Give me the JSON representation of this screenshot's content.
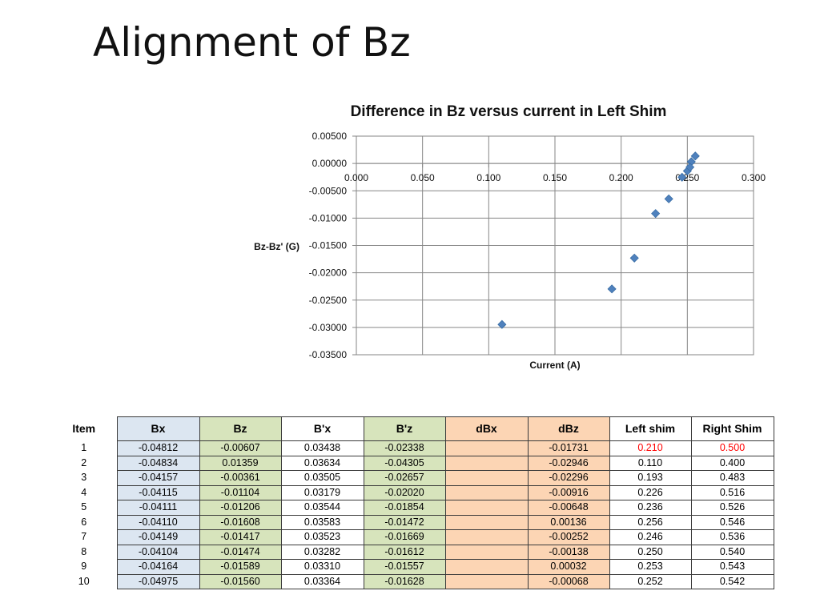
{
  "slide": {
    "title": "Alignment of Bz"
  },
  "chart_data": {
    "type": "scatter",
    "title": "Difference in Bz versus current in Left Shim",
    "xlabel": "Current (A)",
    "ylabel": "Bz-Bz' (G)",
    "xlim": [
      0.0,
      0.3
    ],
    "ylim": [
      -0.035,
      0.005
    ],
    "x_ticks": [
      0.0,
      0.05,
      0.1,
      0.15,
      0.2,
      0.25,
      0.3
    ],
    "x_tick_labels": [
      "0.000",
      "0.050",
      "0.100",
      "0.150",
      "0.200",
      "0.250",
      "0.300"
    ],
    "y_ticks": [
      0.005,
      0.0,
      -0.005,
      -0.01,
      -0.015,
      -0.02,
      -0.025,
      -0.03,
      -0.035
    ],
    "y_tick_labels": [
      "0.00500",
      "0.00000",
      "-0.00500",
      "-0.01000",
      "-0.01500",
      "-0.02000",
      "-0.02500",
      "-0.03000",
      "-0.03500"
    ],
    "grid": true,
    "marker_color": "#4f81bd",
    "x": [
      0.21,
      0.11,
      0.193,
      0.226,
      0.236,
      0.256,
      0.246,
      0.25,
      0.253,
      0.252
    ],
    "y": [
      -0.01731,
      -0.02946,
      -0.02296,
      -0.00916,
      -0.00648,
      0.00136,
      -0.00252,
      -0.00138,
      0.00032,
      -0.00068
    ]
  },
  "table": {
    "headers": [
      "Item",
      "Bx",
      "Bz",
      "B'x",
      "B'z",
      "dBx",
      "dBz",
      "Left shim",
      "Right Shim"
    ],
    "rows": [
      [
        "1",
        "-0.04812",
        "-0.00607",
        "0.03438",
        "-0.02338",
        "",
        "-0.01731",
        "0.210",
        "0.500"
      ],
      [
        "2",
        "-0.04834",
        "0.01359",
        "0.03634",
        "-0.04305",
        "",
        "-0.02946",
        "0.110",
        "0.400"
      ],
      [
        "3",
        "-0.04157",
        "-0.00361",
        "0.03505",
        "-0.02657",
        "",
        "-0.02296",
        "0.193",
        "0.483"
      ],
      [
        "4",
        "-0.04115",
        "-0.01104",
        "0.03179",
        "-0.02020",
        "",
        "-0.00916",
        "0.226",
        "0.516"
      ],
      [
        "5",
        "-0.04111",
        "-0.01206",
        "0.03544",
        "-0.01854",
        "",
        "-0.00648",
        "0.236",
        "0.526"
      ],
      [
        "6",
        "-0.04110",
        "-0.01608",
        "0.03583",
        "-0.01472",
        "",
        "0.00136",
        "0.256",
        "0.546"
      ],
      [
        "7",
        "-0.04149",
        "-0.01417",
        "0.03523",
        "-0.01669",
        "",
        "-0.00252",
        "0.246",
        "0.536"
      ],
      [
        "8",
        "-0.04104",
        "-0.01474",
        "0.03282",
        "-0.01612",
        "",
        "-0.00138",
        "0.250",
        "0.540"
      ],
      [
        "9",
        "-0.04164",
        "-0.01589",
        "0.03310",
        "-0.01557",
        "",
        "0.00032",
        "0.253",
        "0.543"
      ],
      [
        "10",
        "-0.04975",
        "-0.01560",
        "0.03364",
        "-0.01628",
        "",
        "-0.00068",
        "0.252",
        "0.542"
      ]
    ],
    "column_fills": [
      "",
      "#dce6f1",
      "#d7e4bc",
      "#ffffff",
      "#d7e4bc",
      "#fcd5b4",
      "#fcd5b4",
      "#ffffff",
      "#ffffff"
    ],
    "highlight_color": "#ff0000",
    "highlighted_cells": [
      [
        0,
        7
      ],
      [
        0,
        8
      ]
    ]
  }
}
